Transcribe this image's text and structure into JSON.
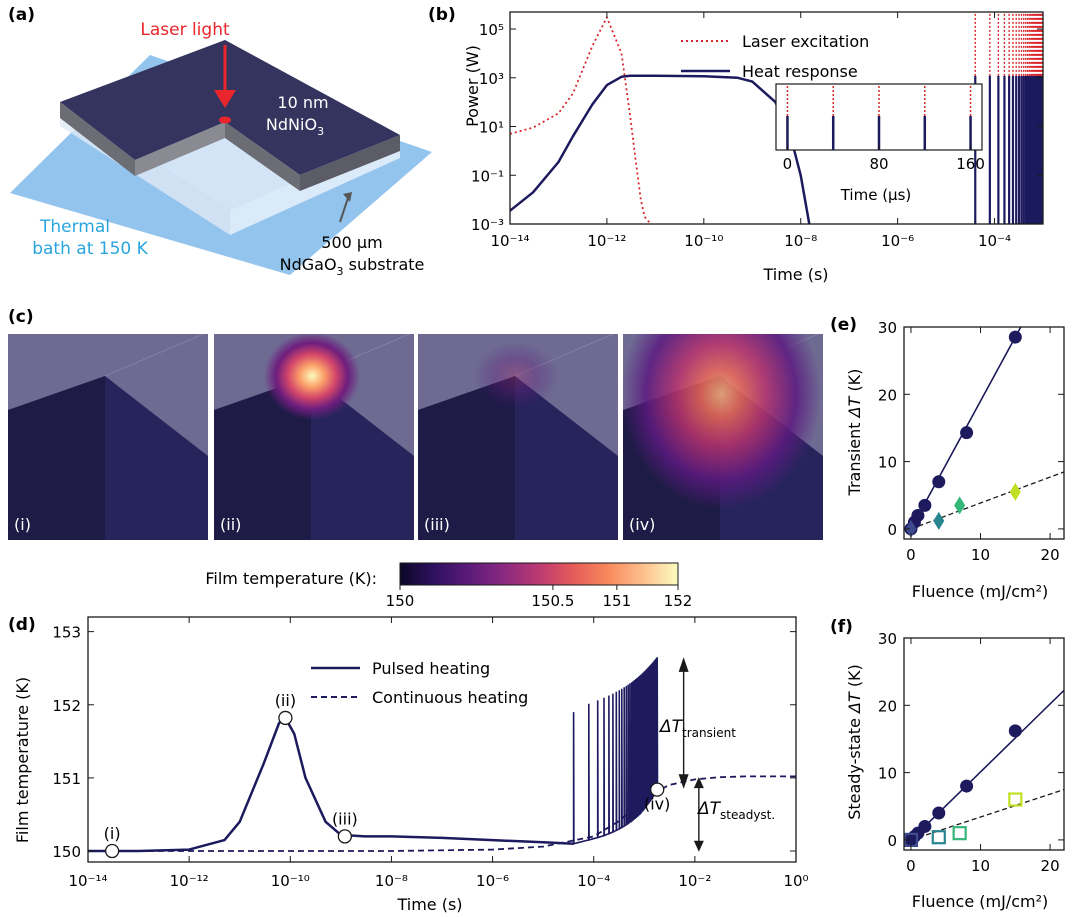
{
  "panels": {
    "a": {
      "label": "(a)",
      "laser": "Laser light",
      "film_thickness": "10 nm",
      "film_material": "NdNiO",
      "film_sub": "3",
      "bath_line1": "Thermal",
      "bath_line2": "bath at 150 K",
      "substrate_line1": "500 µm",
      "substrate_line2": "NdGaO",
      "substrate_sub": "3",
      "substrate_word": " substrate",
      "colors": {
        "laser": "#e8262c",
        "film": "#34345e",
        "bath": "#93c4ee",
        "bath_text": "#2aa6dd",
        "substrate": "#ecf2f9"
      }
    },
    "b": {
      "label": "(b)",
      "chart_data": {
        "type": "line",
        "x_scale": "log",
        "y_scale": "log",
        "xlabel": "Time (s)",
        "ylabel": "Power (W)",
        "xlim": [
          1e-14,
          0.001
        ],
        "ylim": [
          0.001,
          500000
        ],
        "x_ticks": [
          "10⁻¹⁴",
          "10⁻¹²",
          "10⁻¹⁰",
          "10⁻⁸",
          "10⁻⁶",
          "10⁻⁴"
        ],
        "y_ticks": [
          "10⁻³",
          "10⁻¹",
          "10¹",
          "10³",
          "10⁵"
        ],
        "legend_position": "top-right",
        "series": [
          {
            "name": "Laser excitation",
            "style": "dotted",
            "color": "#d9262c",
            "x": [
              1e-14,
              3e-14,
              1e-13,
              2e-13,
              5e-13,
              1e-12,
              2e-12,
              3e-12,
              4e-12,
              5e-12,
              6e-12,
              8e-12
            ],
            "y": [
              5,
              9,
              35,
              230,
              20000,
              300000,
              10000,
              30,
              0.3,
              0.01,
              0.002,
              0.001
            ]
          },
          {
            "name": "Heat response",
            "style": "solid",
            "color": "#1d1a5e",
            "x": [
              1e-14,
              3e-14,
              1e-13,
              2e-13,
              5e-13,
              1e-12,
              2e-12,
              3e-12,
              1e-11,
              1e-10,
              5e-10,
              1e-09,
              3e-09,
              6e-09,
              1e-08,
              1.5e-08
            ],
            "y": [
              0.0035,
              0.02,
              0.35,
              4,
              80,
              500,
              1100,
              1200,
              1200,
              1150,
              1000,
              700,
              100,
              5,
              0.1,
              0.001
            ]
          }
        ],
        "pulse_train": {
          "start": 4e-05,
          "end": 0.001,
          "period": 4e-05,
          "height_W": 1200
        },
        "inset": {
          "xlabel": "Time (µs)",
          "x_ticks": [
            "0",
            "80",
            "160"
          ],
          "xlim": [
            -10,
            170
          ],
          "pulse_times_us": [
            0,
            40,
            80,
            120,
            160
          ]
        }
      }
    },
    "c": {
      "label": "(c)",
      "images": [
        {
          "label": "(i)",
          "hot_center": [
            0,
            0
          ],
          "intensity": 0
        },
        {
          "label": "(ii)",
          "hot_center": [
            0,
            0
          ],
          "intensity": 1.0
        },
        {
          "label": "(iii)",
          "hot_center": [
            0,
            0
          ],
          "intensity": 0.35
        },
        {
          "label": "(iv)",
          "hot_center": [
            0,
            0
          ],
          "intensity": 0.85
        }
      ],
      "colorbar": {
        "title": "Film temperature (K):",
        "ticks": [
          "150",
          "150.5",
          "151",
          "152"
        ],
        "colors": [
          "#0c0826",
          "#2e1060",
          "#5c1b7a",
          "#8c2a80",
          "#bc3a72",
          "#e55a5a",
          "#f88a5c",
          "#fdc290",
          "#fcfdbf"
        ]
      }
    },
    "d": {
      "label": "(d)",
      "chart_data": {
        "type": "line",
        "x_scale": "log",
        "xlabel": "Time (s)",
        "ylabel": "Film temperature (K)",
        "xlim": [
          1e-14,
          1
        ],
        "ylim": [
          149.85,
          153.2
        ],
        "x_ticks": [
          "10⁻¹⁴",
          "10⁻¹²",
          "10⁻¹⁰",
          "10⁻⁸",
          "10⁻⁶",
          "10⁻⁴",
          "10⁻²",
          "10⁰"
        ],
        "y_ticks": [
          "150",
          "151",
          "152",
          "153"
        ],
        "legend_position": "top-center",
        "series": [
          {
            "name": "Pulsed heating",
            "style": "solid",
            "color": "#1d1a5e",
            "x": [
              1e-14,
              1e-13,
              1e-12,
              5e-12,
              1e-11,
              3e-11,
              6e-11,
              8e-11,
              1.2e-10,
              2e-10,
              5e-10,
              1e-09,
              3e-09,
              1e-08,
              1e-07,
              1e-06,
              1e-05,
              4e-05
            ],
            "y": [
              150.0,
              150.0,
              150.02,
              150.15,
              150.4,
              151.2,
              151.75,
              151.82,
              151.6,
              151.0,
              150.4,
              150.22,
              150.2,
              150.2,
              150.18,
              150.15,
              150.12,
              150.1
            ]
          },
          {
            "name": "Continuous heating",
            "style": "dashed",
            "color": "#1d1a5e",
            "x": [
              1e-14,
              1e-08,
              1e-06,
              1e-05,
              0.0001,
              0.0003,
              0.001,
              0.003,
              0.01,
              0.03,
              0.1,
              1
            ],
            "y": [
              150.0,
              150.0,
              150.02,
              150.06,
              150.2,
              150.4,
              150.7,
              150.9,
              150.98,
              151.01,
              151.02,
              151.02
            ]
          }
        ],
        "pulse_train": {
          "start": 4e-05,
          "end": 0.0018,
          "period": 4e-05,
          "base_start": 150.1,
          "base_end": 150.84,
          "peak_start": 151.9,
          "peak_end": 152.65
        },
        "markers": [
          {
            "label": "(i)",
            "x": 3e-14,
            "y": 150.0
          },
          {
            "label": "(ii)",
            "x": 8e-11,
            "y": 151.82
          },
          {
            "label": "(iii)",
            "x": 1.2e-09,
            "y": 150.2
          },
          {
            "label": "(iv)",
            "x": 0.0018,
            "y": 150.84
          }
        ],
        "annotations": [
          {
            "symbol": "ΔT",
            "sub": "transient"
          },
          {
            "symbol": "ΔT",
            "sub": "steadyst."
          }
        ]
      }
    },
    "e": {
      "label": "(e)",
      "chart_data": {
        "type": "scatter",
        "xlabel": "Fluence (mJ/cm²)",
        "ylabel_prefix": "Transient ",
        "ylabel_symbol": "ΔT",
        "ylabel_suffix": " (K)",
        "xlim": [
          -1,
          22
        ],
        "ylim": [
          -1.5,
          30
        ],
        "x_ticks": [
          0,
          10,
          20
        ],
        "y_ticks": [
          0,
          10,
          20,
          30
        ],
        "series": [
          {
            "marker": "circle",
            "color": "#1d1a5e",
            "fit": "solid",
            "x": [
              0,
              0.5,
              1,
              2,
              4,
              8,
              15
            ],
            "y": [
              0,
              1,
              2,
              3.5,
              7,
              14.3,
              28.5
            ],
            "fit_slope": 1.9
          },
          {
            "marker": "diamond",
            "fit": "dashed",
            "x": [
              0,
              4,
              7,
              15
            ],
            "y": [
              0,
              1.2,
              3.5,
              5.5
            ],
            "colors": [
              "#3d4b8e",
              "#26858e",
              "#35b779",
              "#c2df23"
            ],
            "fit_slope": 0.385
          }
        ]
      }
    },
    "f": {
      "label": "(f)",
      "chart_data": {
        "type": "scatter",
        "xlabel": "Fluence (mJ/cm²)",
        "ylabel_prefix": "Steady-state ",
        "ylabel_symbol": "ΔT",
        "ylabel_suffix": " (K)",
        "xlim": [
          -1,
          22
        ],
        "ylim": [
          -1.5,
          30
        ],
        "x_ticks": [
          0,
          10,
          20
        ],
        "y_ticks": [
          0,
          10,
          20,
          30
        ],
        "series": [
          {
            "marker": "circle",
            "color": "#1d1a5e",
            "fit": "solid",
            "x": [
              0,
              0.5,
              1,
              2,
              4,
              8,
              15
            ],
            "y": [
              0,
              0.5,
              1,
              2,
              4,
              8,
              16.2
            ],
            "fit_slope": 1.01
          },
          {
            "marker": "square",
            "fit": "dashed",
            "x": [
              0,
              4,
              7,
              15
            ],
            "y": [
              0,
              0.4,
              1,
              6
            ],
            "colors": [
              "#3d4b8e",
              "#26858e",
              "#35b779",
              "#c2df23"
            ],
            "fit_slope": 0.34
          }
        ]
      }
    }
  }
}
